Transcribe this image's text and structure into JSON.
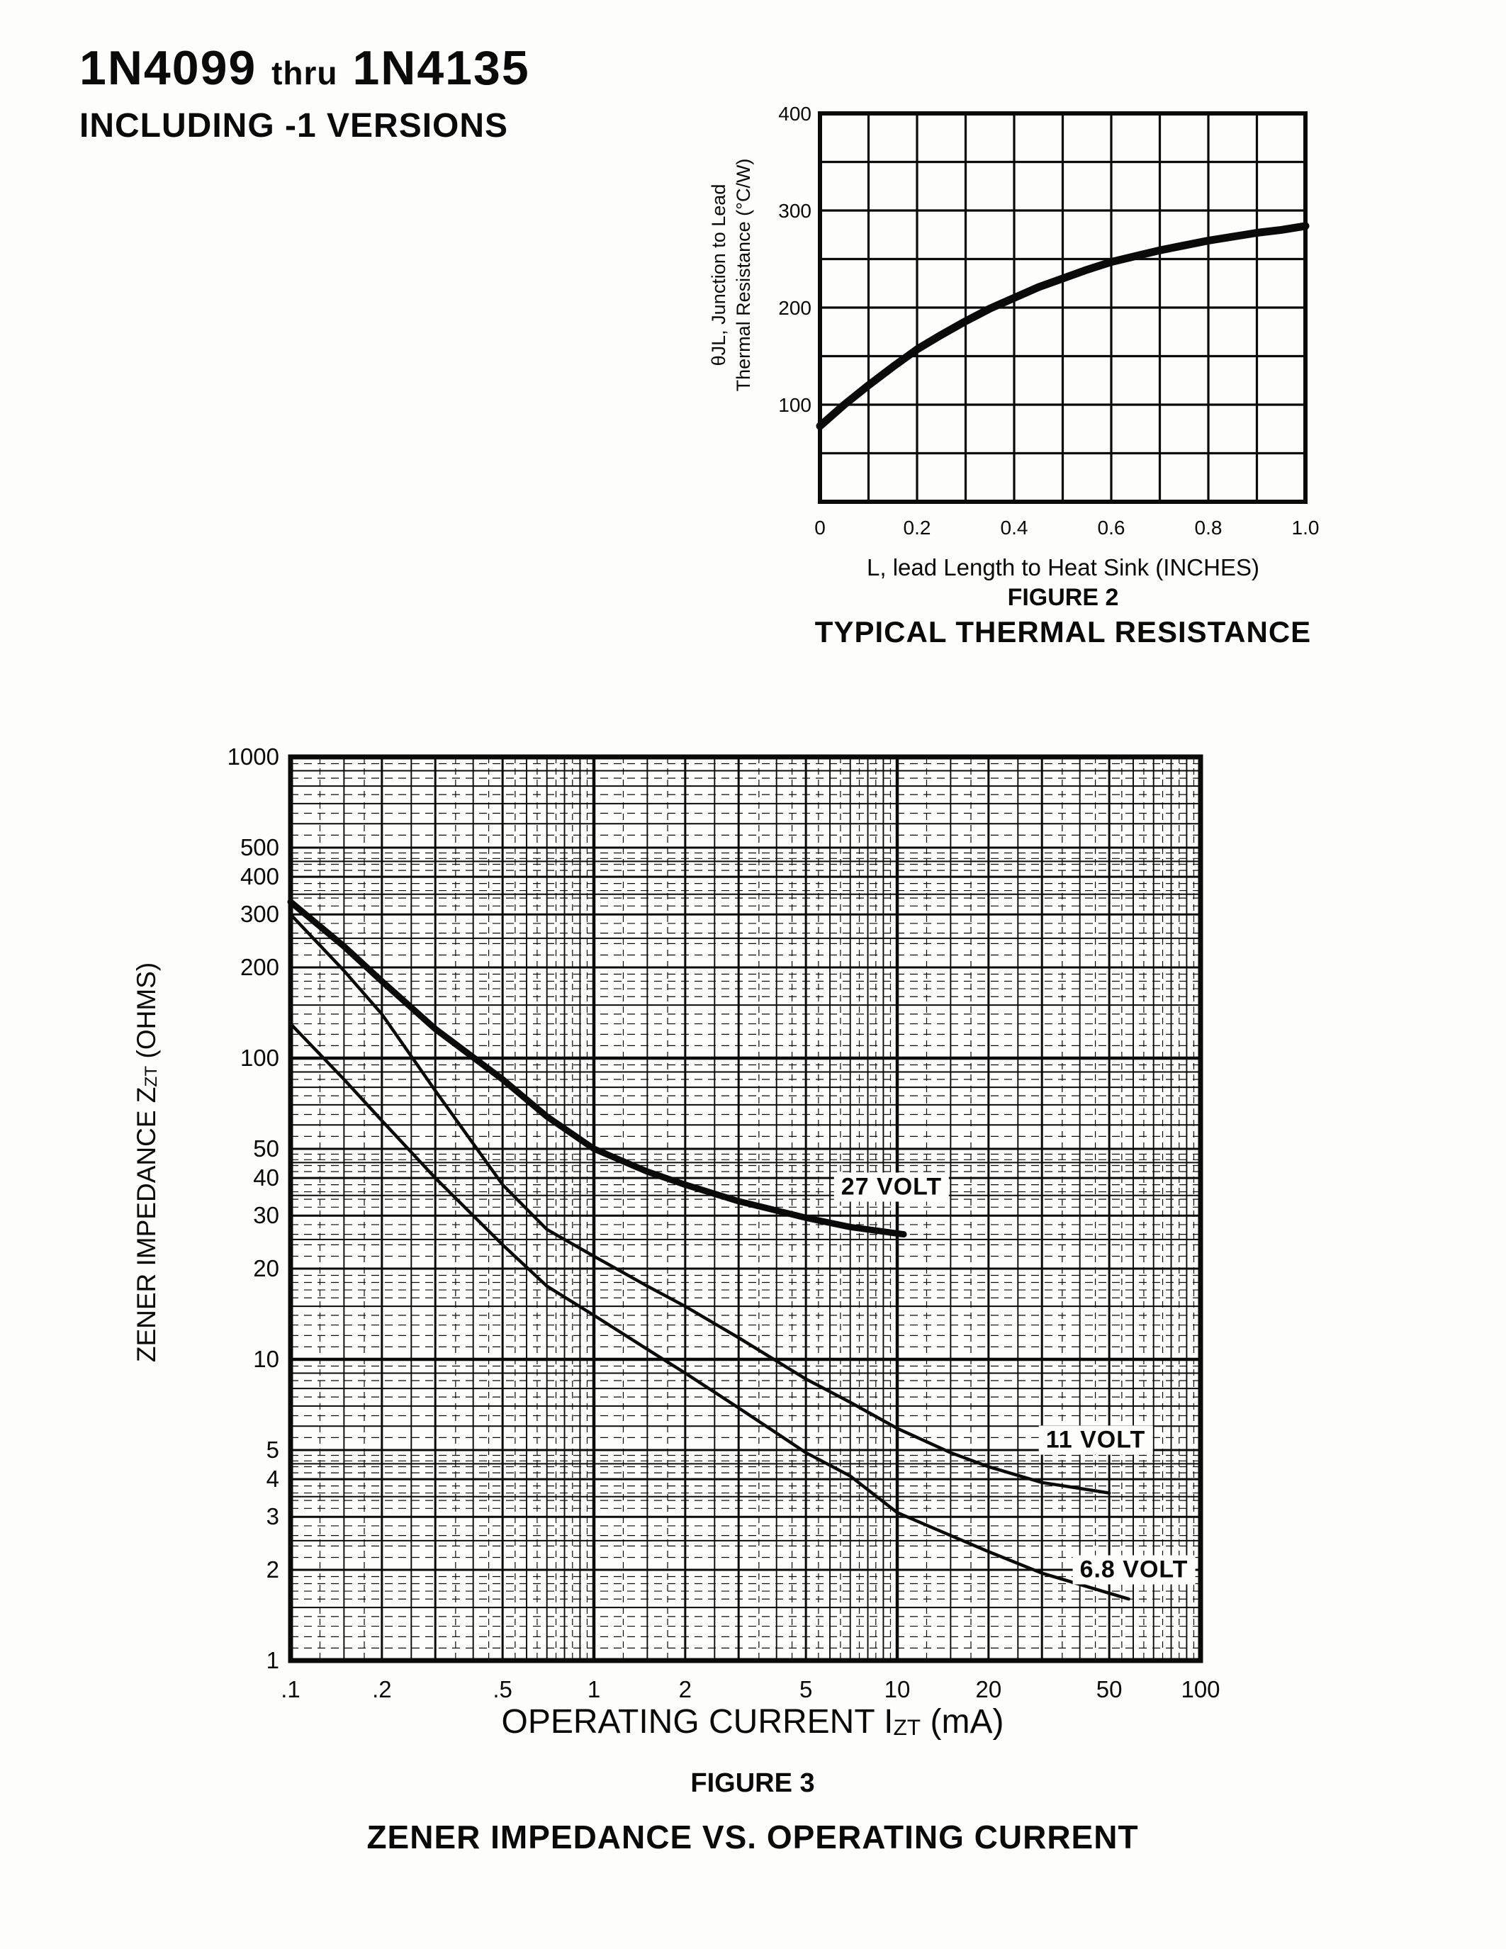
{
  "page_title": {
    "part1": "1N4099",
    "part2": "thru",
    "part3": "1N4135",
    "line2": "INCLUDING -1 VERSIONS"
  },
  "figure2": {
    "y_axis_title_line1": "θJL, Junction to Lead",
    "y_axis_title_line2": "Thermal Resistance (°C/W)",
    "x_axis_title": "L, lead Length to Heat Sink (INCHES)",
    "caption": "FIGURE 2",
    "title": "TYPICAL THERMAL RESISTANCE"
  },
  "figure3": {
    "y_axis_title_prefix": "ZENER IMPEDANCE Z",
    "y_axis_title_sub": "ZT",
    "y_axis_title_suffix": " (OHMS)",
    "x_axis_title_prefix": "OPERATING CURRENT I",
    "x_axis_title_sub": "ZT",
    "x_axis_title_suffix": " (mA)",
    "caption": "FIGURE 3",
    "title": "ZENER IMPEDANCE VS. OPERATING CURRENT",
    "curve_labels": {
      "c27": "27 VOLT",
      "c11": "11 VOLT",
      "c68": "6.8 VOLT"
    }
  },
  "ink_color": "#0a0a0a",
  "paper_color": "#fdfdfc",
  "chart_data": [
    {
      "type": "line",
      "title": "FIGURE 2",
      "subtitle": "TYPICAL THERMAL RESISTANCE",
      "xlabel": "L, lead Length to Heat Sink (INCHES)",
      "ylabel": "θJL, Junction to Lead Thermal Resistance (°C/W)",
      "x_scale": "linear",
      "y_scale": "linear",
      "xlim": [
        0,
        1.0
      ],
      "ylim": [
        0,
        400
      ],
      "x_grid_step": 0.1,
      "y_grid_step": 50,
      "grid": "on",
      "x_ticks": [
        {
          "label": "0",
          "v": 0
        },
        {
          "label": "0.2",
          "v": 0.2
        },
        {
          "label": "0.4",
          "v": 0.4
        },
        {
          "label": "0.6",
          "v": 0.6
        },
        {
          "label": "0.8",
          "v": 0.8
        },
        {
          "label": "1.0",
          "v": 1.0
        }
      ],
      "y_ticks": [
        {
          "label": "100",
          "v": 100
        },
        {
          "label": "200",
          "v": 200
        },
        {
          "label": "300",
          "v": 300
        },
        {
          "label": "400",
          "v": 400
        }
      ],
      "series": [
        {
          "name": "thermal-resistance",
          "x": [
            0,
            0.05,
            0.1,
            0.15,
            0.2,
            0.25,
            0.3,
            0.35,
            0.4,
            0.45,
            0.5,
            0.55,
            0.6,
            0.65,
            0.7,
            0.75,
            0.8,
            0.85,
            0.9,
            0.95,
            1.0
          ],
          "y": [
            78,
            100,
            120,
            139,
            157,
            172,
            186,
            199,
            210,
            221,
            230,
            239,
            247,
            253,
            259,
            264,
            269,
            273,
            277,
            280,
            284
          ]
        }
      ]
    },
    {
      "type": "line",
      "title": "FIGURE 3",
      "subtitle": "ZENER IMPEDANCE VS. OPERATING CURRENT",
      "xlabel": "OPERATING CURRENT IZT (mA)",
      "ylabel": "ZENER IMPEDANCE ZZT (OHMS)",
      "x_scale": "log",
      "y_scale": "log",
      "xlim": [
        0.1,
        100
      ],
      "ylim": [
        1,
        1000
      ],
      "grid": "on",
      "x_ticks": [
        {
          "label": ".1",
          "v": 0.1
        },
        {
          "label": ".2",
          "v": 0.2
        },
        {
          "label": ".5",
          "v": 0.5
        },
        {
          "label": "1",
          "v": 1
        },
        {
          "label": "2",
          "v": 2
        },
        {
          "label": "5",
          "v": 5
        },
        {
          "label": "10",
          "v": 10
        },
        {
          "label": "20",
          "v": 20
        },
        {
          "label": "50",
          "v": 50
        },
        {
          "label": "100",
          "v": 100
        }
      ],
      "y_ticks": [
        {
          "label": "1000",
          "v": 1000
        },
        {
          "label": "500",
          "v": 500
        },
        {
          "label": "400",
          "v": 400
        },
        {
          "label": "300",
          "v": 300
        },
        {
          "label": "200",
          "v": 200
        },
        {
          "label": "100",
          "v": 100
        },
        {
          "label": "50",
          "v": 50
        },
        {
          "label": "40",
          "v": 40
        },
        {
          "label": "30",
          "v": 30
        },
        {
          "label": "20",
          "v": 20
        },
        {
          "label": "10",
          "v": 10
        },
        {
          "label": "5",
          "v": 5
        },
        {
          "label": "4",
          "v": 4
        },
        {
          "label": "3",
          "v": 3
        },
        {
          "label": "2",
          "v": 2
        },
        {
          "label": "1",
          "v": 1
        }
      ],
      "series": [
        {
          "name": "27 VOLT",
          "label_pos": [
            9.5,
            37
          ],
          "x": [
            0.1,
            0.15,
            0.2,
            0.3,
            0.5,
            0.7,
            1,
            1.5,
            2,
            3,
            5,
            7,
            10.5
          ],
          "y": [
            330,
            235,
            180,
            125,
            85,
            64,
            50,
            42,
            38,
            33.5,
            29.5,
            27.5,
            26
          ]
        },
        {
          "name": "11 VOLT",
          "label_pos": [
            45,
            5.45
          ],
          "x": [
            0.1,
            0.15,
            0.2,
            0.3,
            0.5,
            0.7,
            1,
            1.5,
            2,
            3,
            5,
            7,
            10,
            15,
            20,
            30,
            50
          ],
          "y": [
            300,
            195,
            140,
            78,
            38,
            27,
            22,
            17.5,
            15,
            11.8,
            8.6,
            7.2,
            5.9,
            4.9,
            4.4,
            3.9,
            3.6
          ]
        },
        {
          "name": "6.8 VOLT",
          "label_pos": [
            58,
            2.05
          ],
          "x": [
            0.1,
            0.15,
            0.2,
            0.3,
            0.5,
            0.7,
            1,
            1.5,
            2,
            3,
            5,
            7,
            10,
            15,
            20,
            30,
            58
          ],
          "y": [
            130,
            85,
            62,
            40,
            24,
            17.5,
            14,
            10.8,
            9,
            6.9,
            4.9,
            4.1,
            3.1,
            2.6,
            2.3,
            1.95,
            1.6
          ]
        }
      ]
    }
  ]
}
